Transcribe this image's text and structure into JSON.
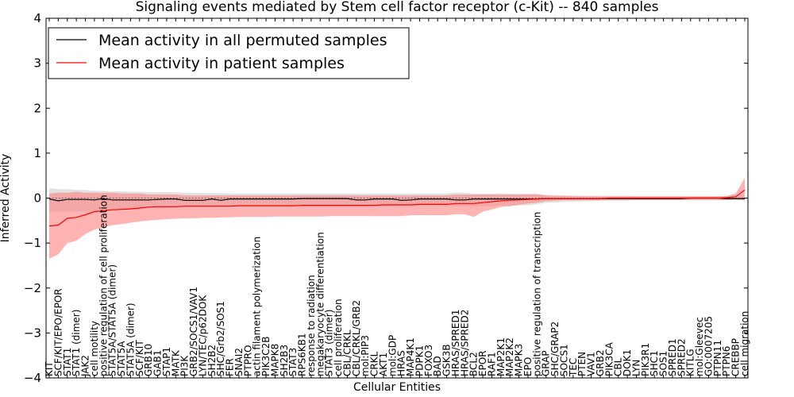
{
  "chart_data": {
    "type": "line",
    "title": "Signaling events mediated by Stem cell factor receptor (c-Kit) -- 840 samples",
    "xlabel": "Cellular Entities",
    "ylabel": "Inferred Activity",
    "ylim": [
      -4,
      4
    ],
    "yticks": [
      -4,
      -3,
      -2,
      -1,
      0,
      1,
      2,
      3,
      4
    ],
    "grid": false,
    "legend_position": "top-left",
    "colors": {
      "permuted": "#000000",
      "permuted_band": "#c8c8c8",
      "patient": "#ff0000",
      "patient_band": "#ff8080",
      "baseline": "#555555"
    },
    "categories": [
      "KIT",
      "SCF/KIT/EPO/EPOR",
      "STAT1",
      "STAT1 (dimer)",
      "JAK2",
      "cell motility",
      "positive regulation of cell proliferation",
      "STAT5A/STAT5A (dimer)",
      "STAT5A",
      "STAT5A (dimer)",
      "SCF/KIT",
      "GRB10",
      "GAB1",
      "STAP1",
      "MATK",
      "PI3K",
      "GRB2/SOCS1/VAV1",
      "LYN/TEC/p62DOK",
      "SH2B2",
      "SHC/Grb2/SOS1",
      "FER",
      "SNAI2",
      "PTPRO",
      "actin filament polymerization",
      "PIK3C2B",
      "MAPK8",
      "SH2B3",
      "STAT3",
      "RPS6KB1",
      "response to radiation",
      "megakaryocyte differentiation",
      "STAT3 (dimer)",
      "cell proliferation",
      "CBL/CRKL",
      "CBL/CRKL/GRB2",
      "mol:PIP3",
      "CRKL",
      "AKT1",
      "mol:GDP",
      "HRAS",
      "MAP4K1",
      "PDPK1",
      "FOXO3",
      "BAD",
      "GSK3B",
      "HRAS/SPRED1",
      "HRAS/SPRED2",
      "BCL2",
      "EPOR",
      "RAF1",
      "MAP2K1",
      "MAP2K2",
      "MAPK3",
      "EPO",
      "positive regulation of transcription",
      "GRAP",
      "SHC/GRAP2",
      "SOCS1",
      "TEC",
      "PTEN",
      "VAV1",
      "GRB2",
      "PIK3CA",
      "CBL",
      "DOK1",
      "LYN",
      "PIK3R1",
      "SHC1",
      "SOS1",
      "SPRED1",
      "SPRED2",
      "KITLG",
      "mol:Gleevec",
      "GO:0007205",
      "PTPN11",
      "PTPN6",
      "CREBBP",
      "cell migration"
    ],
    "series": [
      {
        "name": "Mean activity in all permuted samples",
        "values": [
          -0.02,
          -0.06,
          -0.03,
          -0.03,
          -0.03,
          -0.04,
          -0.01,
          -0.04,
          -0.04,
          -0.04,
          -0.04,
          -0.04,
          -0.03,
          -0.02,
          -0.02,
          -0.05,
          -0.05,
          -0.05,
          -0.02,
          -0.05,
          -0.02,
          -0.02,
          -0.02,
          -0.02,
          -0.02,
          -0.02,
          -0.02,
          -0.02,
          -0.01,
          -0.01,
          -0.01,
          -0.01,
          -0.01,
          -0.01,
          -0.04,
          -0.04,
          -0.02,
          -0.02,
          -0.02,
          -0.05,
          -0.04,
          -0.02,
          -0.02,
          -0.02,
          -0.02,
          -0.04,
          -0.04,
          -0.02,
          -0.02,
          -0.02,
          -0.02,
          -0.02,
          -0.02,
          -0.02,
          -0.02,
          -0.01,
          -0.01,
          -0.01,
          -0.01,
          -0.01,
          -0.01,
          -0.01,
          -0.01,
          -0.01,
          -0.01,
          -0.01,
          -0.01,
          -0.01,
          -0.01,
          -0.01,
          -0.01,
          0.0,
          0.0,
          0.0,
          0.0,
          -0.01,
          -0.01,
          -0.01
        ],
        "lower": [
          -0.3,
          -0.3,
          -0.3,
          -0.3,
          -0.3,
          -0.28,
          -0.25,
          -0.25,
          -0.25,
          -0.25,
          -0.25,
          -0.22,
          -0.22,
          -0.22,
          -0.22,
          -0.2,
          -0.2,
          -0.2,
          -0.2,
          -0.2,
          -0.2,
          -0.18,
          -0.18,
          -0.18,
          -0.18,
          -0.18,
          -0.18,
          -0.18,
          -0.18,
          -0.18,
          -0.18,
          -0.18,
          -0.18,
          -0.18,
          -0.18,
          -0.18,
          -0.18,
          -0.18,
          -0.18,
          -0.18,
          -0.18,
          -0.18,
          -0.18,
          -0.18,
          -0.18,
          -0.18,
          -0.18,
          -0.18,
          -0.18,
          -0.18,
          -0.16,
          -0.16,
          -0.16,
          -0.16,
          -0.14,
          -0.1,
          -0.1,
          -0.08,
          -0.08,
          -0.07,
          -0.07,
          -0.06,
          -0.06,
          -0.06,
          -0.06,
          -0.05,
          -0.05,
          -0.05,
          -0.05,
          -0.05,
          -0.05,
          -0.05,
          -0.05,
          -0.05,
          -0.05,
          -0.05,
          -0.05,
          -0.05
        ],
        "upper": [
          0.22,
          0.2,
          0.2,
          0.18,
          0.18,
          0.16,
          0.16,
          0.15,
          0.15,
          0.14,
          0.14,
          0.13,
          0.13,
          0.13,
          0.13,
          0.12,
          0.12,
          0.11,
          0.11,
          0.11,
          0.1,
          0.1,
          0.1,
          0.1,
          0.1,
          0.1,
          0.1,
          0.1,
          0.1,
          0.1,
          0.1,
          0.1,
          0.1,
          0.1,
          0.1,
          0.1,
          0.1,
          0.1,
          0.1,
          0.1,
          0.1,
          0.1,
          0.1,
          0.1,
          0.1,
          0.12,
          0.12,
          0.1,
          0.1,
          0.1,
          0.1,
          0.1,
          0.1,
          0.1,
          0.1,
          0.07,
          0.07,
          0.06,
          0.06,
          0.05,
          0.05,
          0.05,
          0.05,
          0.05,
          0.05,
          0.04,
          0.04,
          0.04,
          0.04,
          0.04,
          0.04,
          0.04,
          0.04,
          0.04,
          0.04,
          0.04,
          0.05,
          0.06
        ]
      },
      {
        "name": "Mean activity in patient samples",
        "values": [
          -0.62,
          -0.6,
          -0.45,
          -0.43,
          -0.37,
          -0.3,
          -0.28,
          -0.26,
          -0.25,
          -0.24,
          -0.22,
          -0.2,
          -0.19,
          -0.19,
          -0.19,
          -0.18,
          -0.18,
          -0.18,
          -0.18,
          -0.18,
          -0.18,
          -0.17,
          -0.17,
          -0.17,
          -0.17,
          -0.17,
          -0.17,
          -0.17,
          -0.16,
          -0.16,
          -0.16,
          -0.16,
          -0.16,
          -0.16,
          -0.16,
          -0.16,
          -0.16,
          -0.15,
          -0.15,
          -0.15,
          -0.15,
          -0.14,
          -0.14,
          -0.14,
          -0.14,
          -0.12,
          -0.12,
          -0.12,
          -0.1,
          -0.08,
          -0.06,
          -0.05,
          -0.04,
          -0.03,
          -0.02,
          -0.01,
          -0.01,
          -0.01,
          -0.01,
          -0.01,
          -0.01,
          -0.01,
          0.0,
          0.0,
          0.0,
          0.0,
          0.0,
          0.0,
          0.0,
          0.0,
          0.0,
          0.0,
          0.0,
          0.0,
          0.0,
          0.01,
          0.03,
          0.18
        ],
        "lower": [
          -1.35,
          -1.25,
          -1.0,
          -0.95,
          -0.8,
          -0.7,
          -0.65,
          -0.6,
          -0.58,
          -0.55,
          -0.52,
          -0.5,
          -0.48,
          -0.47,
          -0.46,
          -0.45,
          -0.45,
          -0.44,
          -0.44,
          -0.43,
          -0.43,
          -0.42,
          -0.42,
          -0.42,
          -0.42,
          -0.41,
          -0.41,
          -0.41,
          -0.41,
          -0.41,
          -0.41,
          -0.4,
          -0.4,
          -0.4,
          -0.4,
          -0.4,
          -0.4,
          -0.4,
          -0.4,
          -0.4,
          -0.38,
          -0.38,
          -0.38,
          -0.38,
          -0.38,
          -0.36,
          -0.36,
          -0.42,
          -0.3,
          -0.25,
          -0.2,
          -0.18,
          -0.15,
          -0.12,
          -0.1,
          -0.07,
          -0.06,
          -0.05,
          -0.05,
          -0.05,
          -0.05,
          -0.05,
          -0.04,
          -0.04,
          -0.04,
          -0.04,
          -0.04,
          -0.04,
          -0.04,
          -0.04,
          -0.04,
          -0.04,
          -0.04,
          -0.04,
          -0.04,
          -0.04,
          -0.03,
          -0.05
        ],
        "upper": [
          0.1,
          0.12,
          0.12,
          0.14,
          0.12,
          0.12,
          0.12,
          0.12,
          0.1,
          0.1,
          0.1,
          0.08,
          0.08,
          0.08,
          0.08,
          0.06,
          0.06,
          0.06,
          0.06,
          0.06,
          0.06,
          0.06,
          0.06,
          0.06,
          0.06,
          0.06,
          0.06,
          0.06,
          0.06,
          0.06,
          0.06,
          0.06,
          0.06,
          0.06,
          0.06,
          0.06,
          0.06,
          0.06,
          0.06,
          0.06,
          0.06,
          0.06,
          0.06,
          0.06,
          0.06,
          0.08,
          0.08,
          0.08,
          0.08,
          0.08,
          0.08,
          0.08,
          0.08,
          0.08,
          0.08,
          0.06,
          0.05,
          0.05,
          0.04,
          0.04,
          0.04,
          0.04,
          0.04,
          0.04,
          0.04,
          0.04,
          0.04,
          0.04,
          0.04,
          0.04,
          0.04,
          0.04,
          0.04,
          0.04,
          0.04,
          0.05,
          0.1,
          0.45
        ]
      }
    ]
  }
}
